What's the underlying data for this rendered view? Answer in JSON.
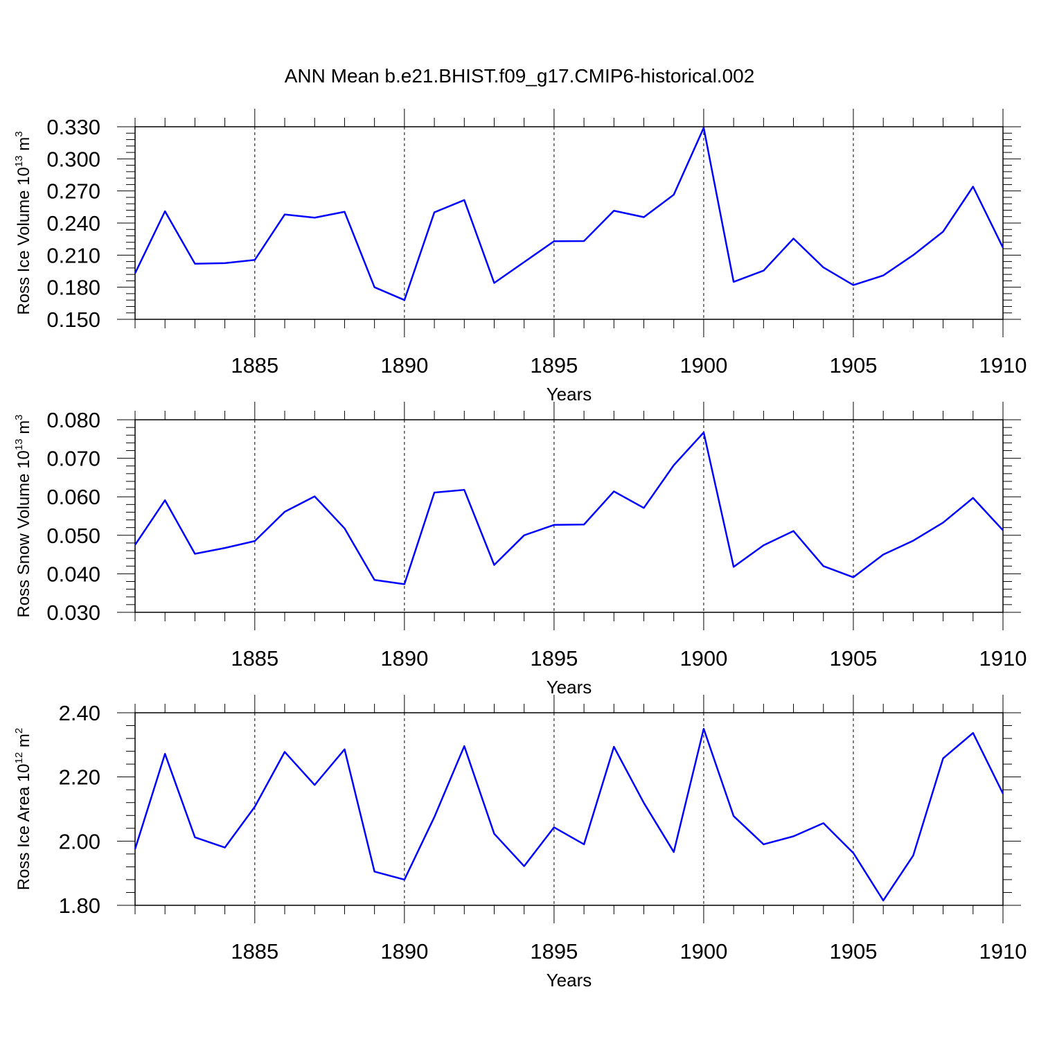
{
  "title": "ANN Mean b.e21.BHIST.f09_g17.CMIP6-historical.002",
  "chart_data": [
    {
      "type": "line",
      "ylabel_main": "Ross Ice Volume 10",
      "ylabel_exp": "13",
      "ylabel_unit": " m",
      "ylabel_unit_exp": "3",
      "xlabel": "Years",
      "xlim": [
        1881,
        1910
      ],
      "ylim": [
        0.15,
        0.33
      ],
      "yticks": [
        "0.150",
        "0.180",
        "0.210",
        "0.240",
        "0.270",
        "0.300",
        "0.330"
      ],
      "ytick_values": [
        0.15,
        0.18,
        0.21,
        0.24,
        0.27,
        0.3,
        0.33
      ],
      "xticks": [
        "1885",
        "1890",
        "1895",
        "1900",
        "1905",
        "1910"
      ],
      "xtick_values": [
        1885,
        1890,
        1895,
        1900,
        1905,
        1910
      ],
      "series": [
        {
          "name": "Ross Ice Volume",
          "color": "#0000ff",
          "x": [
            1881,
            1882,
            1883,
            1884,
            1885,
            1886,
            1887,
            1888,
            1889,
            1890,
            1891,
            1892,
            1893,
            1894,
            1895,
            1896,
            1897,
            1898,
            1899,
            1900,
            1901,
            1902,
            1903,
            1904,
            1905,
            1906,
            1907,
            1908,
            1909,
            1910
          ],
          "values": [
            0.193,
            0.251,
            0.202,
            0.2025,
            0.2055,
            0.248,
            0.245,
            0.2505,
            0.18,
            0.168,
            0.25,
            0.2615,
            0.184,
            0.2035,
            0.223,
            0.2232,
            0.2515,
            0.2455,
            0.2665,
            0.329,
            0.185,
            0.1955,
            0.2255,
            0.1985,
            0.182,
            0.191,
            0.21,
            0.232,
            0.274,
            0.217
          ]
        }
      ]
    },
    {
      "type": "line",
      "ylabel_main": "Ross Snow Volume 10",
      "ylabel_exp": "13",
      "ylabel_unit": " m",
      "ylabel_unit_exp": "3",
      "xlabel": "Years",
      "xlim": [
        1881,
        1910
      ],
      "ylim": [
        0.03,
        0.08
      ],
      "yticks": [
        "0.030",
        "0.040",
        "0.050",
        "0.060",
        "0.070",
        "0.080"
      ],
      "ytick_values": [
        0.03,
        0.04,
        0.05,
        0.06,
        0.07,
        0.08
      ],
      "xticks": [
        "1885",
        "1890",
        "1895",
        "1900",
        "1905",
        "1910"
      ],
      "xtick_values": [
        1885,
        1890,
        1895,
        1900,
        1905,
        1910
      ],
      "series": [
        {
          "name": "Ross Snow Volume",
          "color": "#0000ff",
          "x": [
            1881,
            1882,
            1883,
            1884,
            1885,
            1886,
            1887,
            1888,
            1889,
            1890,
            1891,
            1892,
            1893,
            1894,
            1895,
            1896,
            1897,
            1898,
            1899,
            1900,
            1901,
            1902,
            1903,
            1904,
            1905,
            1906,
            1907,
            1908,
            1909,
            1910
          ],
          "values": [
            0.0475,
            0.0591,
            0.0452,
            0.0467,
            0.0485,
            0.0561,
            0.0601,
            0.0518,
            0.0384,
            0.0373,
            0.0611,
            0.0618,
            0.0423,
            0.05,
            0.0527,
            0.0528,
            0.0614,
            0.0571,
            0.0682,
            0.0767,
            0.0418,
            0.0474,
            0.0511,
            0.042,
            0.0391,
            0.045,
            0.0486,
            0.0533,
            0.0597,
            0.0513
          ]
        }
      ]
    },
    {
      "type": "line",
      "ylabel_main": "Ross Ice Area 10",
      "ylabel_exp": "12",
      "ylabel_unit": " m",
      "ylabel_unit_exp": "2",
      "xlabel": "Years",
      "xlim": [
        1881,
        1910
      ],
      "ylim": [
        1.8,
        2.4
      ],
      "yticks": [
        "1.80",
        "2.00",
        "2.20",
        "2.40"
      ],
      "ytick_values": [
        1.8,
        2.0,
        2.2,
        2.4
      ],
      "xticks": [
        "1885",
        "1890",
        "1895",
        "1900",
        "1905",
        "1910"
      ],
      "xtick_values": [
        1885,
        1890,
        1895,
        1900,
        1905,
        1910
      ],
      "series": [
        {
          "name": "Ross Ice Area",
          "color": "#0000ff",
          "x": [
            1881,
            1882,
            1883,
            1884,
            1885,
            1886,
            1887,
            1888,
            1889,
            1890,
            1891,
            1892,
            1893,
            1894,
            1895,
            1896,
            1897,
            1898,
            1899,
            1900,
            1901,
            1902,
            1903,
            1904,
            1905,
            1906,
            1907,
            1908,
            1909,
            1910
          ],
          "values": [
            1.975,
            2.272,
            2.012,
            1.98,
            2.107,
            2.278,
            2.175,
            2.286,
            1.905,
            1.88,
            2.075,
            2.296,
            2.023,
            1.922,
            2.043,
            1.99,
            2.294,
            2.119,
            1.966,
            2.35,
            2.078,
            1.99,
            2.015,
            2.056,
            1.963,
            1.815,
            1.955,
            2.258,
            2.337,
            2.148
          ]
        }
      ]
    }
  ]
}
